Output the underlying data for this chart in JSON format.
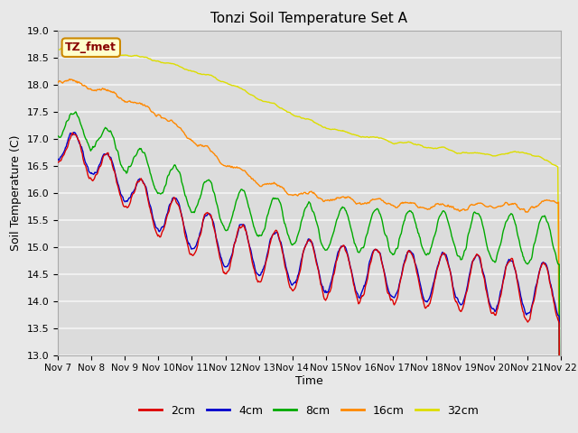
{
  "title": "Tonzi Soil Temperature Set A",
  "xlabel": "Time",
  "ylabel": "Soil Temperature (C)",
  "ylim": [
    13.0,
    19.0
  ],
  "yticks": [
    13.0,
    13.5,
    14.0,
    14.5,
    15.0,
    15.5,
    16.0,
    16.5,
    17.0,
    17.5,
    18.0,
    18.5,
    19.0
  ],
  "xtick_labels": [
    "Nov 7",
    "Nov 8",
    "Nov 9",
    "Nov 10",
    "Nov 11",
    "Nov 12",
    "Nov 13",
    "Nov 14",
    "Nov 15",
    "Nov 16",
    "Nov 17",
    "Nov 18",
    "Nov 19",
    "Nov 20",
    "Nov 21",
    "Nov 22"
  ],
  "series_colors": [
    "#dd0000",
    "#0000cc",
    "#00aa00",
    "#ff8800",
    "#dddd00"
  ],
  "series_labels": [
    "2cm",
    "4cm",
    "8cm",
    "16cm",
    "32cm"
  ],
  "legend_label": "TZ_fmet",
  "legend_bg": "#ffffcc",
  "legend_border": "#cc8800",
  "legend_text_color": "#880000",
  "bg_color": "#e8e8e8",
  "plot_bg_color": "#dcdcdc",
  "grid_color": "#f5f5f5",
  "n_days": 15,
  "points_per_day": 48
}
